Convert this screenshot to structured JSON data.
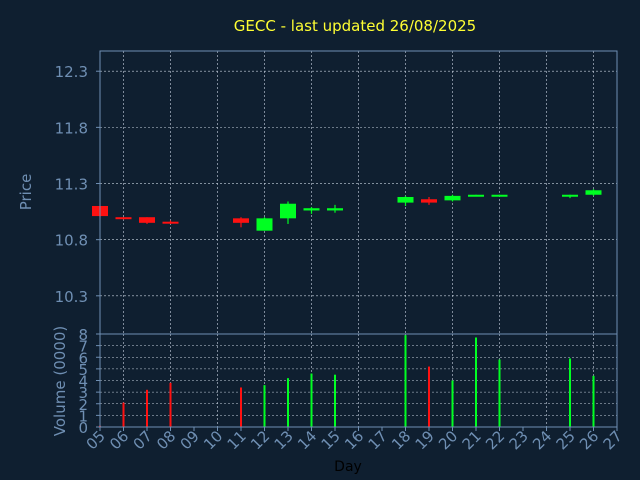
{
  "colors": {
    "background": "#0f1f30",
    "frame": "#6f8fb3",
    "grid": "#c8d3e0",
    "title": "#ffff33",
    "axis_text": "#6f8fb3",
    "xlabel_text": "#000000",
    "up": "#00ff22",
    "down": "#ff1111"
  },
  "chart_data": [
    {
      "type": "candlestick",
      "title": "GECC - last updated 26/08/2025",
      "ylabel": "Price",
      "ylim": [
        9.96,
        12.48
      ],
      "yticks": [
        10.3,
        10.8,
        11.3,
        11.8,
        12.3
      ],
      "x_range": [
        0,
        22
      ],
      "grid": true,
      "ohlc": [
        {
          "day": "05",
          "open": 11.1,
          "high": 11.1,
          "low": 11.0,
          "close": 11.01
        },
        {
          "day": "06",
          "open": 11.0,
          "high": 11.0,
          "low": 10.98,
          "close": 10.99
        },
        {
          "day": "07",
          "open": 11.0,
          "high": 11.0,
          "low": 10.94,
          "close": 10.95
        },
        {
          "day": "08",
          "open": 10.96,
          "high": 10.97,
          "low": 10.94,
          "close": 10.95
        },
        {
          "day": "11",
          "open": 10.99,
          "high": 11.0,
          "low": 10.91,
          "close": 10.95
        },
        {
          "day": "12",
          "open": 10.88,
          "high": 11.0,
          "low": 10.88,
          "close": 10.99
        },
        {
          "day": "13",
          "open": 10.99,
          "high": 11.14,
          "low": 10.94,
          "close": 11.12
        },
        {
          "day": "14",
          "open": 11.06,
          "high": 11.09,
          "low": 11.03,
          "close": 11.08
        },
        {
          "day": "15",
          "open": 11.06,
          "high": 11.11,
          "low": 11.04,
          "close": 11.08
        },
        {
          "day": "18",
          "open": 11.13,
          "high": 11.19,
          "low": 11.1,
          "close": 11.18
        },
        {
          "day": "19",
          "open": 11.16,
          "high": 11.18,
          "low": 11.11,
          "close": 11.13
        },
        {
          "day": "20",
          "open": 11.15,
          "high": 11.2,
          "low": 11.14,
          "close": 11.19
        },
        {
          "day": "21",
          "open": 11.19,
          "high": 11.2,
          "low": 11.19,
          "close": 11.2
        },
        {
          "day": "22",
          "open": 11.19,
          "high": 11.2,
          "low": 11.19,
          "close": 11.2
        },
        {
          "day": "25",
          "open": 11.19,
          "high": 11.2,
          "low": 11.17,
          "close": 11.2
        },
        {
          "day": "26",
          "open": 11.2,
          "high": 11.25,
          "low": 11.19,
          "close": 11.24
        }
      ]
    },
    {
      "type": "bar",
      "xlabel": "Day",
      "ylabel": "Volume (0000)",
      "ylim": [
        0,
        8
      ],
      "yticks": [
        0,
        1,
        2,
        3,
        4,
        5,
        6,
        7,
        8
      ],
      "grid": true,
      "x_range": [
        0,
        22
      ],
      "xtick_labels": [
        "05",
        "06",
        "07",
        "08",
        "09",
        "10",
        "11",
        "12",
        "13",
        "14",
        "15",
        "16",
        "17",
        "18",
        "19",
        "20",
        "21",
        "22",
        "23",
        "24",
        "25",
        "26",
        "27"
      ],
      "bars": [
        {
          "day": "05",
          "value": 0.1,
          "direction": "down"
        },
        {
          "day": "06",
          "value": 2.1,
          "direction": "down"
        },
        {
          "day": "07",
          "value": 3.2,
          "direction": "down"
        },
        {
          "day": "08",
          "value": 3.8,
          "direction": "down"
        },
        {
          "day": "11",
          "value": 3.4,
          "direction": "down"
        },
        {
          "day": "12",
          "value": 3.6,
          "direction": "up"
        },
        {
          "day": "13",
          "value": 4.2,
          "direction": "up"
        },
        {
          "day": "14",
          "value": 4.6,
          "direction": "up"
        },
        {
          "day": "15",
          "value": 4.5,
          "direction": "up"
        },
        {
          "day": "18",
          "value": 7.9,
          "direction": "up"
        },
        {
          "day": "19",
          "value": 5.2,
          "direction": "down"
        },
        {
          "day": "20",
          "value": 4.0,
          "direction": "up"
        },
        {
          "day": "21",
          "value": 7.7,
          "direction": "up"
        },
        {
          "day": "22",
          "value": 5.8,
          "direction": "up"
        },
        {
          "day": "25",
          "value": 5.9,
          "direction": "up"
        },
        {
          "day": "26",
          "value": 4.4,
          "direction": "up"
        }
      ]
    }
  ]
}
